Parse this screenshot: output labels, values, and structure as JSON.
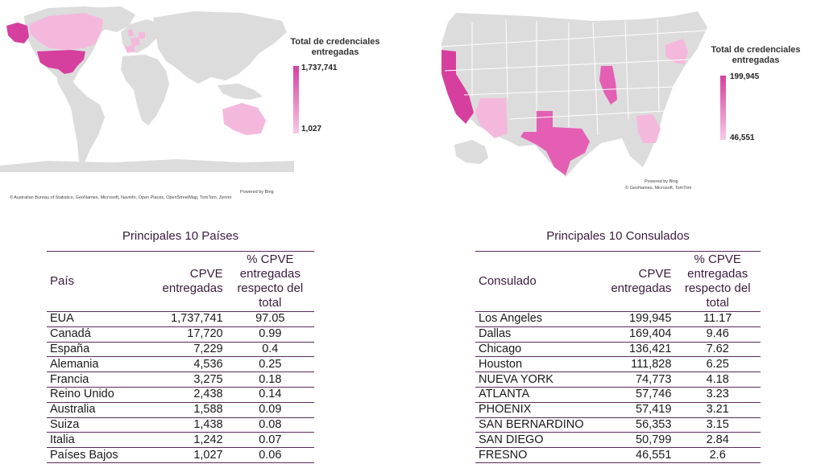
{
  "world_map": {
    "legend_title": "Total de credenciales entregadas",
    "legend_max": "1,737,741",
    "legend_min": "1,027",
    "powered_by": "Powered by Bing",
    "attribution": "© Australian Bureau of Statistics, GeoNames, Microsoft, Navinfo, Open Places, OpenStreetMap, TomTom, Zenrin",
    "colors": {
      "land": "#dcdcdc",
      "high": "#d63f9e",
      "mid": "#ea8cc7",
      "low": "#f5b8dd"
    }
  },
  "us_map": {
    "legend_title": "Total de credenciales entregadas",
    "legend_max": "199,945",
    "legend_min": "46,551",
    "powered_by": "Powered by Bing",
    "attribution": "© GeoNames, Microsoft, TomTom",
    "colors": {
      "land": "#dcdcdc",
      "high": "#d63f9e",
      "mid": "#e45fb3",
      "low": "#f5b8dd"
    }
  },
  "countries_table": {
    "title": "Principales 10 Países",
    "headers": {
      "col1": "País",
      "col2": "CPVE entregadas",
      "col3": "% CPVE entregadas respecto del total"
    },
    "rows": [
      {
        "name": "EUA",
        "cpve": "1,737,741",
        "pct": "97.05"
      },
      {
        "name": "Canadá",
        "cpve": "17,720",
        "pct": "0.99"
      },
      {
        "name": "España",
        "cpve": "7,229",
        "pct": "0.4"
      },
      {
        "name": "Alemania",
        "cpve": "4,536",
        "pct": "0.25"
      },
      {
        "name": "Francia",
        "cpve": "3,275",
        "pct": "0.18"
      },
      {
        "name": "Reino Unido",
        "cpve": "2,438",
        "pct": "0.14"
      },
      {
        "name": "Australia",
        "cpve": "1,588",
        "pct": "0.09"
      },
      {
        "name": "Suiza",
        "cpve": "1,438",
        "pct": "0.08"
      },
      {
        "name": "Italia",
        "cpve": "1,242",
        "pct": "0.07"
      },
      {
        "name": "Países Bajos",
        "cpve": "1,027",
        "pct": "0.06"
      }
    ]
  },
  "consulates_table": {
    "title": "Principales 10 Consulados",
    "headers": {
      "col1": "Consulado",
      "col2": "CPVE entregadas",
      "col3": "% CPVE entregadas respecto del total"
    },
    "rows": [
      {
        "name": "Los Angeles",
        "cpve": "199,945",
        "pct": "11.17"
      },
      {
        "name": "Dallas",
        "cpve": "169,404",
        "pct": "9.46"
      },
      {
        "name": "Chicago",
        "cpve": "136,421",
        "pct": "7.62"
      },
      {
        "name": "Houston",
        "cpve": "111,828",
        "pct": "6.25"
      },
      {
        "name": "NUEVA YORK",
        "cpve": "74,773",
        "pct": "4.18"
      },
      {
        "name": "ATLANTA",
        "cpve": "57,746",
        "pct": "3.23"
      },
      {
        "name": "PHOENIX",
        "cpve": "57,419",
        "pct": "3.21"
      },
      {
        "name": "SAN BERNARDINO",
        "cpve": "56,353",
        "pct": "3.15"
      },
      {
        "name": "SAN DIEGO",
        "cpve": "50,799",
        "pct": "2.84"
      },
      {
        "name": "FRESNO",
        "cpve": "46,551",
        "pct": "2.6"
      }
    ]
  }
}
